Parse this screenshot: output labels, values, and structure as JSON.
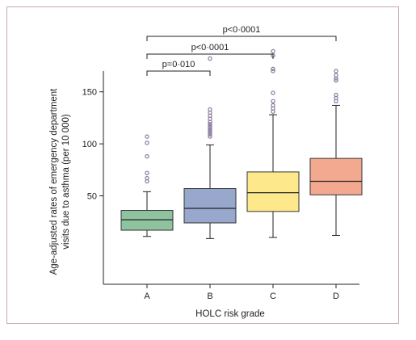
{
  "chart_data": {
    "type": "box",
    "xlabel": "HOLC risk grade",
    "ylabel_line1": "Age-adjusted rates of emergency department",
    "ylabel_line2": "visits due to asthma (per 10 000)",
    "yticks": [
      50,
      100,
      150
    ],
    "ylim": [
      -35,
      215
    ],
    "categories": [
      "A",
      "B",
      "C",
      "D"
    ],
    "colors": {
      "A": "#8fc3a0",
      "B": "#97a8cc",
      "C": "#fde98c",
      "D": "#f2a98f",
      "outlier": "#8a7a9e",
      "frame": "#c9a8b6"
    },
    "boxes": [
      {
        "category": "A",
        "whisker_low": 11,
        "q1": 17,
        "median": 27,
        "q3": 36,
        "whisker_high": 54,
        "outliers": [
          64,
          67,
          72,
          88,
          101,
          107
        ]
      },
      {
        "category": "B",
        "whisker_low": 9,
        "q1": 24,
        "median": 38,
        "q3": 57,
        "whisker_high": 99,
        "outliers": [
          107,
          109,
          111,
          113,
          115,
          117,
          119,
          121,
          124,
          127,
          130,
          133,
          182
        ]
      },
      {
        "category": "C",
        "whisker_low": 10,
        "q1": 35,
        "median": 53,
        "q3": 73,
        "whisker_high": 128,
        "outliers": [
          131,
          134,
          137,
          141,
          149,
          170,
          172,
          185,
          189
        ]
      },
      {
        "category": "D",
        "whisker_low": 12,
        "q1": 51,
        "median": 64,
        "q3": 86,
        "whisker_high": 137,
        "outliers": [
          141,
          144,
          147,
          161,
          163,
          166,
          170
        ]
      }
    ],
    "comparisons": [
      {
        "from": "A",
        "to": "B",
        "label": "p=0·010"
      },
      {
        "from": "A",
        "to": "C",
        "label": "p<0·0001"
      },
      {
        "from": "A",
        "to": "D",
        "label": "p<0·0001"
      }
    ]
  }
}
